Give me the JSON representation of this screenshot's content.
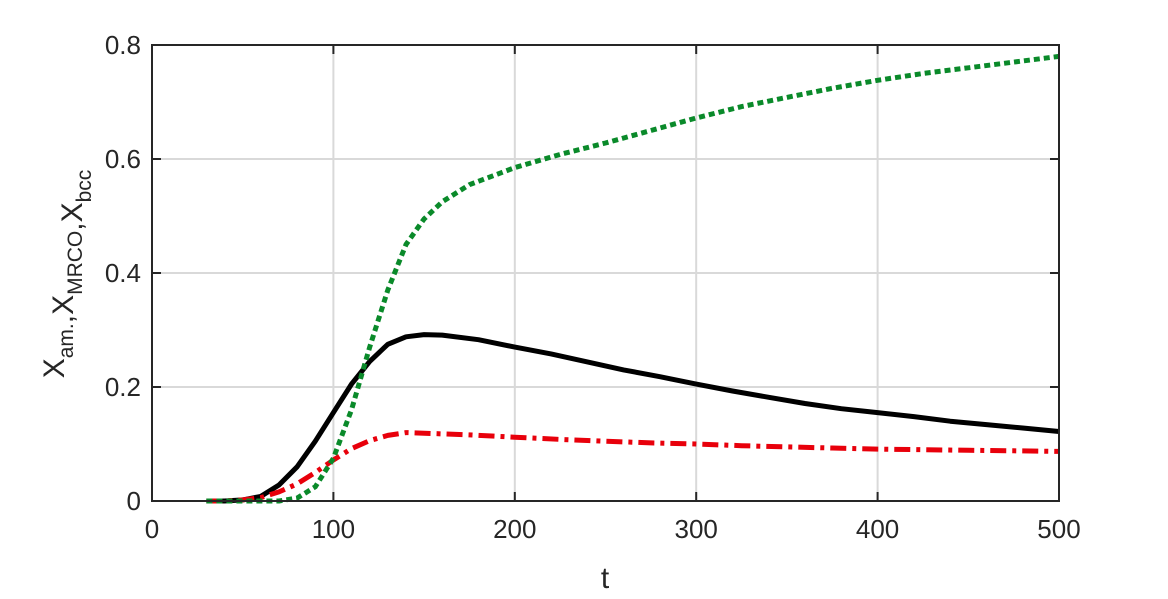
{
  "chart_data": {
    "type": "line",
    "title": "",
    "xlabel": "t",
    "ylabel": {
      "parts": [
        {
          "base": "X",
          "sub": "am."
        },
        {
          "sep": ","
        },
        {
          "base": "X",
          "sub": "MRCO"
        },
        {
          "sep": ","
        },
        {
          "base": "X",
          "sub": "bcc"
        }
      ]
    },
    "xlim": [
      0,
      500
    ],
    "ylim": [
      0,
      0.8
    ],
    "xticks": [
      "0",
      "100",
      "200",
      "300",
      "400",
      "500"
    ],
    "yticks": [
      "0",
      "0.2",
      "0.4",
      "0.6",
      "0.8"
    ],
    "grid": true,
    "series": [
      {
        "color": "#000000",
        "dash": "solid",
        "x": [
          30,
          40,
          50,
          60,
          70,
          80,
          90,
          100,
          110,
          120,
          130,
          140,
          150,
          160,
          180,
          200,
          220,
          240,
          260,
          280,
          300,
          320,
          340,
          360,
          380,
          400,
          420,
          440,
          460,
          480,
          500
        ],
        "y": [
          0,
          0,
          0.002,
          0.008,
          0.028,
          0.06,
          0.105,
          0.155,
          0.205,
          0.245,
          0.275,
          0.288,
          0.292,
          0.291,
          0.283,
          0.27,
          0.258,
          0.244,
          0.23,
          0.218,
          0.205,
          0.193,
          0.182,
          0.171,
          0.162,
          0.155,
          0.148,
          0.14,
          0.134,
          0.128,
          0.122
        ]
      },
      {
        "color": "#e8000b",
        "dash": "dashdot",
        "x": [
          30,
          40,
          50,
          60,
          70,
          80,
          90,
          100,
          110,
          120,
          130,
          140,
          150,
          175,
          200,
          225,
          250,
          275,
          300,
          325,
          350,
          375,
          400,
          425,
          450,
          475,
          500
        ],
        "y": [
          0,
          0,
          0.002,
          0.006,
          0.016,
          0.03,
          0.05,
          0.072,
          0.092,
          0.106,
          0.115,
          0.12,
          0.119,
          0.116,
          0.112,
          0.108,
          0.105,
          0.102,
          0.1,
          0.097,
          0.095,
          0.093,
          0.091,
          0.09,
          0.089,
          0.088,
          0.087
        ]
      },
      {
        "color": "#0a8a2a",
        "dash": "dotted",
        "x": [
          30,
          50,
          70,
          80,
          90,
          100,
          110,
          120,
          130,
          140,
          150,
          160,
          175,
          200,
          225,
          250,
          275,
          300,
          325,
          350,
          375,
          400,
          425,
          450,
          475,
          500
        ],
        "y": [
          0,
          0,
          0,
          0.005,
          0.025,
          0.075,
          0.16,
          0.27,
          0.37,
          0.45,
          0.495,
          0.525,
          0.555,
          0.585,
          0.608,
          0.628,
          0.65,
          0.672,
          0.692,
          0.708,
          0.724,
          0.738,
          0.75,
          0.76,
          0.77,
          0.78
        ]
      }
    ]
  }
}
